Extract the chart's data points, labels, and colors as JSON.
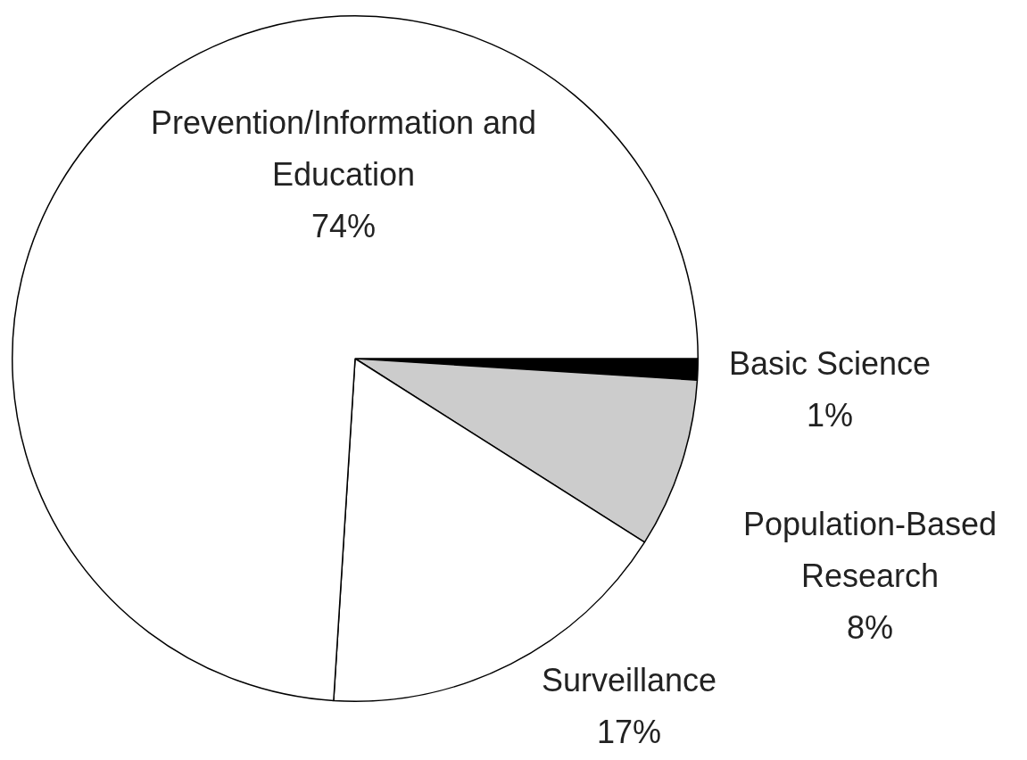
{
  "chart_data": {
    "type": "pie",
    "categories": [
      "Basic Science",
      "Population-Based Research",
      "Surveillance",
      "Prevention/Information and Education"
    ],
    "values": [
      1,
      8,
      17,
      74
    ],
    "colors": [
      "#000000",
      "#cccccc",
      "#ffffff",
      "#ffffff"
    ],
    "value_labels": [
      "1%",
      "8%",
      "17%",
      "74%"
    ],
    "legend": false
  }
}
